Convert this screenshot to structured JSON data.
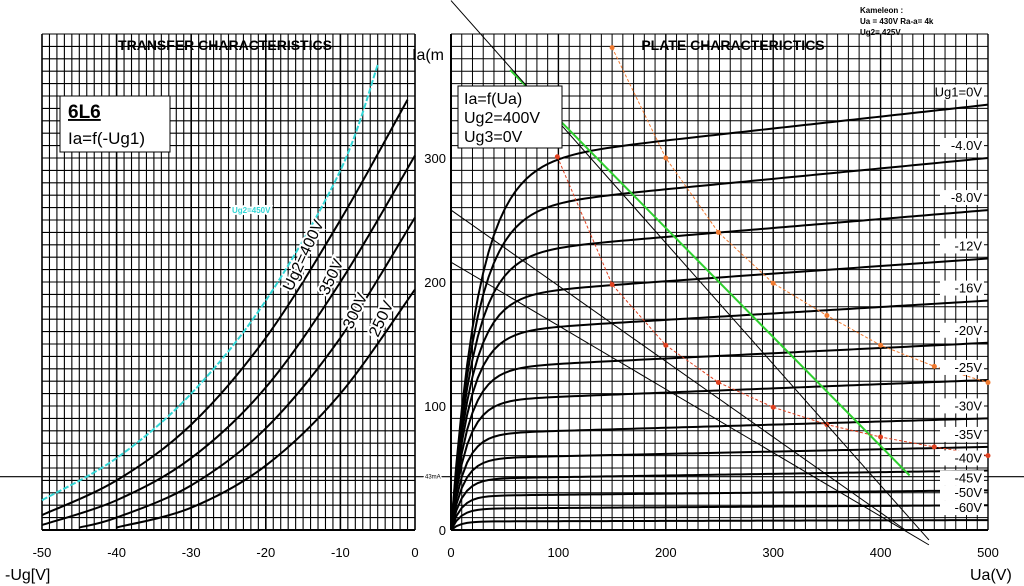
{
  "chart_data": [
    {
      "type": "line",
      "title": "TRANSFER CHARACTERISTICS",
      "tube": "6L6",
      "subtitle": "Ia=f(-Ug1)",
      "xlabel": "-Ug[V]",
      "ylabel": "Ia(mA)",
      "xlim": [
        -50,
        0
      ],
      "ylim": [
        0,
        400
      ],
      "grid": true,
      "xticks": [
        "-50",
        "-40",
        "-30",
        "-20",
        "-10",
        "0"
      ],
      "xtick_values": [
        -50,
        -40,
        -30,
        -20,
        -10,
        0
      ],
      "marker_line": {
        "label": "43mA",
        "value": 43
      },
      "series": [
        {
          "name": "Ug2=450V",
          "color": "#33d6d6",
          "points": [
            [
              -50,
              24
            ],
            [
              -40,
              58
            ],
            [
              -30,
              110
            ],
            [
              -20,
              185
            ],
            [
              -10,
              290
            ],
            [
              -5,
              375
            ]
          ]
        },
        {
          "name": "Ug2=400V",
          "color": "#000000",
          "points": [
            [
              -50,
              12
            ],
            [
              -40,
              40
            ],
            [
              -30,
              85
            ],
            [
              -20,
              155
            ],
            [
              -10,
              250
            ],
            [
              -1,
              347
            ]
          ]
        },
        {
          "name": "350V",
          "color": "#000000",
          "points": [
            [
              -50,
              4
            ],
            [
              -40,
              24
            ],
            [
              -30,
              58
            ],
            [
              -20,
              115
            ],
            [
              -10,
              200
            ],
            [
              0,
              302
            ]
          ]
        },
        {
          "name": "300V",
          "color": "#000000",
          "points": [
            [
              -45,
              2
            ],
            [
              -40,
              10
            ],
            [
              -30,
              36
            ],
            [
              -20,
              82
            ],
            [
              -10,
              155
            ],
            [
              0,
              252
            ]
          ]
        },
        {
          "name": "250V",
          "color": "#000000",
          "points": [
            [
              -40,
              2
            ],
            [
              -30,
              18
            ],
            [
              -20,
              52
            ],
            [
              -10,
              110
            ],
            [
              0,
              194
            ]
          ]
        }
      ]
    },
    {
      "type": "line",
      "title": "PLATE CHARACTERICTICS",
      "legend_lines": [
        "Ia=f(Ua)",
        "Ug2=400V",
        "Ug3=0V"
      ],
      "xlabel": "Ua(V)",
      "ylabel": "Ia(m",
      "xlim": [
        0,
        500
      ],
      "ylim": [
        0,
        400
      ],
      "grid": true,
      "xticks": [
        "0",
        "100",
        "200",
        "300",
        "400",
        "500"
      ],
      "xtick_values": [
        0,
        100,
        200,
        300,
        400,
        500
      ],
      "yticks": [
        "0",
        "100",
        "200",
        "300"
      ],
      "ytick_values": [
        0,
        100,
        200,
        300
      ],
      "note": [
        "Kameleon :",
        "Ua = 430V   Ra-a= 4k",
        "Ug2= 425V"
      ],
      "series": [
        {
          "name": "Ug1=0V",
          "ia_at_500": 343
        },
        {
          "name": "-4.0V",
          "ia_at_500": 300
        },
        {
          "name": "-8.0V",
          "ia_at_500": 258
        },
        {
          "name": "-12V",
          "ia_at_500": 219
        },
        {
          "name": "-16V",
          "ia_at_500": 185
        },
        {
          "name": "-20V",
          "ia_at_500": 151
        },
        {
          "name": "-25V",
          "ia_at_500": 121
        },
        {
          "name": "-30V",
          "ia_at_500": 90
        },
        {
          "name": "-35V",
          "ia_at_500": 67
        },
        {
          "name": "-40V",
          "ia_at_500": 48
        },
        {
          "name": "-45V",
          "ia_at_500": 32
        },
        {
          "name": "-50V",
          "ia_at_500": 20
        },
        {
          "name": "-60V",
          "ia_at_500": 8
        }
      ],
      "load_lines": [
        {
          "name": "green-load-line",
          "color": "#2fcf2f",
          "points": [
            [
              55,
              371
            ],
            [
              427,
              44
            ]
          ]
        },
        {
          "name": "red-dotted-curve",
          "color": "#e0401f",
          "points": [
            [
              99,
              301
            ],
            [
              150,
              198
            ],
            [
              200,
              149
            ],
            [
              249,
              119
            ],
            [
              300,
              99
            ],
            [
              350,
              85
            ],
            [
              400,
              75
            ],
            [
              450,
              67
            ],
            [
              500,
              60
            ]
          ]
        },
        {
          "name": "orange-dotted-curve",
          "color": "#f07a30",
          "points": [
            [
              150,
              389
            ],
            [
              200,
              300
            ],
            [
              249,
              240
            ],
            [
              300,
              199
            ],
            [
              350,
              173
            ],
            [
              400,
              149
            ],
            [
              450,
              132
            ],
            [
              500,
              119
            ]
          ]
        },
        {
          "name": "black-load-line-1",
          "color": "#000000",
          "points": [
            [
              0,
              258
            ],
            [
              423,
              0
            ]
          ]
        },
        {
          "name": "black-load-line-2",
          "color": "#000000",
          "points": [
            [
              0,
              216
            ],
            [
              445,
              -12
            ]
          ]
        },
        {
          "name": "black-load-line-3",
          "color": "#000000",
          "points": [
            [
              0,
              427
            ],
            [
              445,
              -8
            ]
          ]
        }
      ]
    }
  ]
}
